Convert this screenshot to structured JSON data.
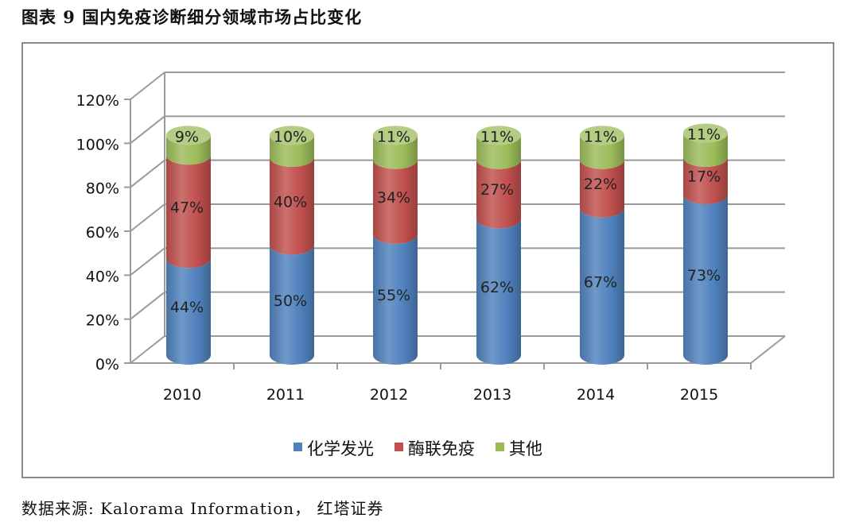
{
  "header": {
    "title": "图表 9 国内免疫诊断细分领域市场占比变化"
  },
  "footer": {
    "source": "数据来源: Kalorama Information， 红塔证券"
  },
  "chart_data": {
    "type": "bar",
    "stacked": true,
    "style": "3d-cylinder",
    "categories": [
      "2010",
      "2011",
      "2012",
      "2013",
      "2014",
      "2015"
    ],
    "series": [
      {
        "name": "化学发光",
        "values": [
          44,
          50,
          55,
          62,
          67,
          73
        ],
        "labels": [
          "44%",
          "50%",
          "55%",
          "62%",
          "67%",
          "73%"
        ],
        "color": "#4f81bd"
      },
      {
        "name": "酶联免疫",
        "values": [
          47,
          40,
          34,
          27,
          22,
          17
        ],
        "labels": [
          "47%",
          "40%",
          "34%",
          "27%",
          "22%",
          "17%"
        ],
        "color": "#c0504d"
      },
      {
        "name": "其他",
        "values": [
          9,
          10,
          11,
          11,
          11,
          11
        ],
        "labels": [
          "9%",
          "10%",
          "11%",
          "11%",
          "11%",
          "11%"
        ],
        "color": "#9bbb59"
      }
    ],
    "y_ticks": [
      "0%",
      "20%",
      "40%",
      "60%",
      "80%",
      "100%",
      "120%"
    ],
    "ylim": [
      0,
      120
    ],
    "grid": true,
    "legend": "bottom"
  }
}
